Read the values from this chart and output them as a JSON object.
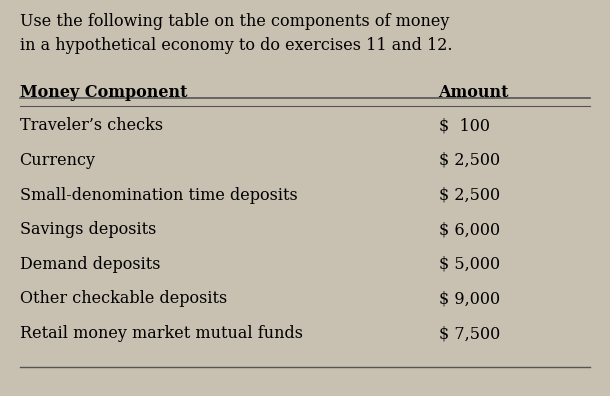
{
  "title_line1": "Use the following table on the components of money",
  "title_line2": "in a hypothetical economy to do exercises 11 and 12.",
  "col1_header": "Money Component",
  "col2_header": "Amount",
  "rows": [
    [
      "Traveler’s checks",
      "$  100"
    ],
    [
      "Currency",
      "$ 2,500"
    ],
    [
      "Small-denomination time deposits",
      "$ 2,500"
    ],
    [
      "Savings deposits",
      "$ 6,000"
    ],
    [
      "Demand deposits",
      "$ 5,000"
    ],
    [
      "Other checkable deposits",
      "$ 9,000"
    ],
    [
      "Retail money market mutual funds",
      "$ 7,500"
    ]
  ],
  "bg_color": "#c8c0b0",
  "header_fontsize": 11.5,
  "row_fontsize": 11.5,
  "title_fontsize": 11.5,
  "line_color": "#555555"
}
